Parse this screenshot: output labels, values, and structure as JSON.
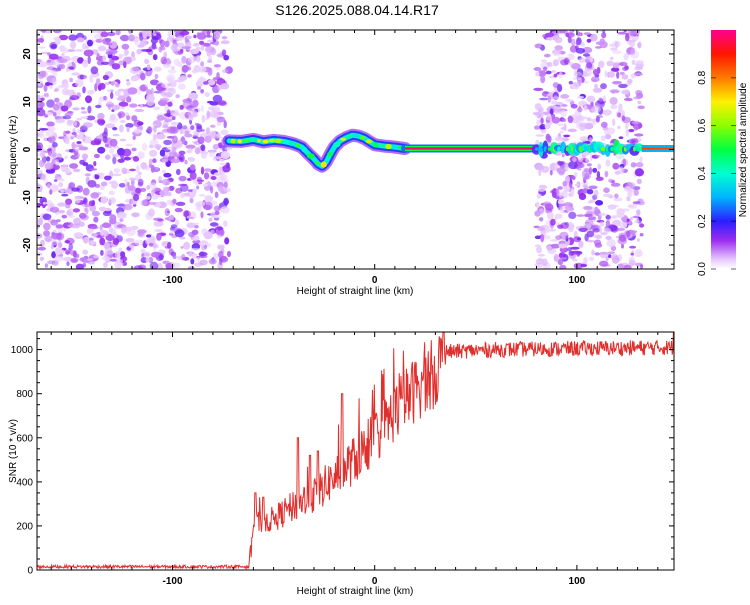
{
  "figure": {
    "title": "S126.2025.088.04.14.R17"
  },
  "colors": {
    "snr_line": "#e0302e",
    "frame": "#000000"
  },
  "chart_data": [
    {
      "name": "spectrogram",
      "type": "heatmap",
      "title": "S126.2025.088.04.14.R17",
      "xlabel": "Height of straight line (km)",
      "ylabel": "Frequency (Hz)",
      "xlim": [
        -167,
        148
      ],
      "ylim": [
        -25,
        25
      ],
      "x_ticks": [
        -100,
        0,
        100
      ],
      "y_ticks": [
        -20,
        -10,
        0,
        10,
        20
      ],
      "colorbar": {
        "label": "Normalized spectral amplitude",
        "range": [
          0,
          1
        ],
        "ticks": [
          "0.0",
          "0.2",
          "0.4",
          "0.6",
          "0.8"
        ],
        "colormap": "rainbow (white-violet-blue-cyan-green-yellow-red-magenta)"
      },
      "regions": [
        {
          "x_range": [
            -167,
            -72
          ],
          "content": "noise"
        },
        {
          "x_range": [
            -72,
            15
          ],
          "content": "signal trace (fluctuating)"
        },
        {
          "x_range": [
            15,
            80
          ],
          "content": "signal trace (steady at 0 Hz)"
        },
        {
          "x_range": [
            80,
            132
          ],
          "content": "noise with fragmented trace"
        },
        {
          "x_range": [
            132,
            148
          ],
          "content": "signal trace (steady at 0 Hz)"
        }
      ],
      "trace": {
        "x": [
          -72,
          -66,
          -60,
          -55,
          -50,
          -45,
          -40,
          -36,
          -33,
          -30,
          -28,
          -26,
          -24,
          -22,
          -20,
          -17,
          -14,
          -11,
          -8,
          -5,
          -2,
          0,
          5,
          10,
          15,
          80
        ],
        "y": [
          1.8,
          1.7,
          2.1,
          1.6,
          1.9,
          1.7,
          1.2,
          0.5,
          -0.8,
          -2.0,
          -3.0,
          -3.5,
          -2.6,
          -1.0,
          0.5,
          1.8,
          2.5,
          3.0,
          2.8,
          2.3,
          1.5,
          1.0,
          0.7,
          0.5,
          0.2,
          0.2
        ]
      }
    },
    {
      "name": "snr",
      "type": "line",
      "xlabel": "Height of straight line (km)",
      "ylabel": "SNR (10 * v/v)",
      "xlim": [
        -167,
        148
      ],
      "ylim": [
        0,
        1080
      ],
      "x_ticks": [
        -100,
        0,
        100
      ],
      "y_ticks": [
        0,
        200,
        400,
        600,
        800,
        1000
      ],
      "envelope": {
        "x": [
          -167,
          -62,
          -60,
          -50,
          -40,
          -30,
          -20,
          -10,
          0,
          10,
          20,
          30,
          35,
          60,
          100,
          148
        ],
        "y": [
          15,
          15,
          210,
          230,
          290,
          340,
          420,
          500,
          600,
          720,
          820,
          900,
          990,
          1000,
          1005,
          1010
        ]
      },
      "spikes": [
        {
          "x": -59,
          "y": 350
        },
        {
          "x": -55,
          "y": 330
        },
        {
          "x": -38,
          "y": 600
        },
        {
          "x": -32,
          "y": 520
        },
        {
          "x": -28,
          "y": 540
        },
        {
          "x": -16,
          "y": 800
        },
        {
          "x": 148,
          "y": 1080
        }
      ]
    }
  ]
}
